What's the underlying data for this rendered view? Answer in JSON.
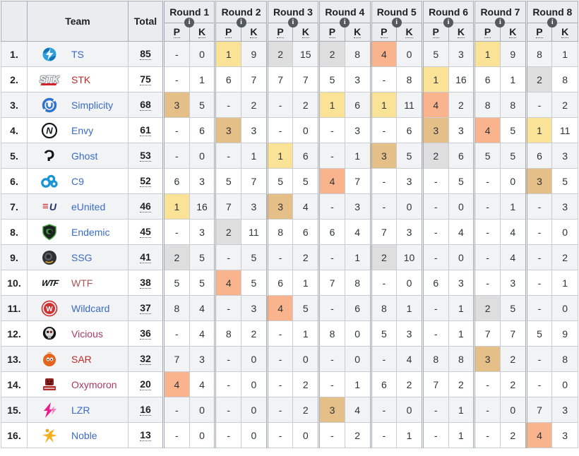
{
  "table": {
    "headers": {
      "team": "Team",
      "total": "Total",
      "p": "P",
      "k": "K",
      "info_icon": "i"
    },
    "rounds": [
      "Round 1",
      "Round 2",
      "Round 3",
      "Round 4",
      "Round 5",
      "Round 6",
      "Round 7",
      "Round 8"
    ],
    "placement_colors": {
      "1": "#FAE296",
      "2": "#DEDEDE",
      "3": "#E4BF87",
      "4": "#F9B48E"
    },
    "link_colors": {
      "blue": "#3A6BC5",
      "red": "#B92C2C",
      "red_muted": "#A55858",
      "red_violet": "#A73A62"
    },
    "teams": [
      {
        "rank": "1.",
        "name": "TS",
        "logo": "ts-logo",
        "name_color": "blue",
        "total": "85",
        "rounds": [
          {
            "p": "-",
            "k": "0"
          },
          {
            "p": "1",
            "k": "9"
          },
          {
            "p": "2",
            "k": "15"
          },
          {
            "p": "2",
            "k": "8"
          },
          {
            "p": "4",
            "k": "0"
          },
          {
            "p": "5",
            "k": "3"
          },
          {
            "p": "1",
            "k": "9"
          },
          {
            "p": "8",
            "k": "1"
          }
        ]
      },
      {
        "rank": "2.",
        "name": "STK",
        "logo": "stk-logo",
        "name_color": "red",
        "total": "75",
        "rounds": [
          {
            "p": "-",
            "k": "1"
          },
          {
            "p": "6",
            "k": "7"
          },
          {
            "p": "7",
            "k": "7"
          },
          {
            "p": "5",
            "k": "3"
          },
          {
            "p": "-",
            "k": "8"
          },
          {
            "p": "1",
            "k": "16"
          },
          {
            "p": "6",
            "k": "1"
          },
          {
            "p": "2",
            "k": "8"
          }
        ]
      },
      {
        "rank": "3.",
        "name": "Simplicity",
        "logo": "simplicity-logo",
        "name_color": "blue",
        "total": "68",
        "rounds": [
          {
            "p": "3",
            "k": "5"
          },
          {
            "p": "-",
            "k": "2"
          },
          {
            "p": "-",
            "k": "2"
          },
          {
            "p": "1",
            "k": "6"
          },
          {
            "p": "1",
            "k": "11"
          },
          {
            "p": "4",
            "k": "2"
          },
          {
            "p": "8",
            "k": "8"
          },
          {
            "p": "-",
            "k": "2"
          }
        ]
      },
      {
        "rank": "4.",
        "name": "Envy",
        "logo": "envy-logo",
        "name_color": "blue",
        "total": "61",
        "rounds": [
          {
            "p": "-",
            "k": "6"
          },
          {
            "p": "3",
            "k": "3"
          },
          {
            "p": "-",
            "k": "0"
          },
          {
            "p": "-",
            "k": "3"
          },
          {
            "p": "-",
            "k": "6"
          },
          {
            "p": "3",
            "k": "3"
          },
          {
            "p": "4",
            "k": "5"
          },
          {
            "p": "1",
            "k": "11"
          }
        ]
      },
      {
        "rank": "5.",
        "name": "Ghost",
        "logo": "ghost-logo",
        "name_color": "blue",
        "total": "53",
        "rounds": [
          {
            "p": "-",
            "k": "0"
          },
          {
            "p": "-",
            "k": "1"
          },
          {
            "p": "1",
            "k": "6"
          },
          {
            "p": "-",
            "k": "1"
          },
          {
            "p": "3",
            "k": "5"
          },
          {
            "p": "2",
            "k": "6"
          },
          {
            "p": "5",
            "k": "5"
          },
          {
            "p": "6",
            "k": "3"
          }
        ]
      },
      {
        "rank": "6.",
        "name": "C9",
        "logo": "c9-logo",
        "name_color": "blue",
        "total": "52",
        "rounds": [
          {
            "p": "6",
            "k": "3"
          },
          {
            "p": "5",
            "k": "7"
          },
          {
            "p": "5",
            "k": "5"
          },
          {
            "p": "4",
            "k": "7"
          },
          {
            "p": "-",
            "k": "3"
          },
          {
            "p": "-",
            "k": "5"
          },
          {
            "p": "-",
            "k": "0"
          },
          {
            "p": "3",
            "k": "5"
          }
        ]
      },
      {
        "rank": "7.",
        "name": "eUnited",
        "logo": "eunited-logo",
        "name_color": "blue",
        "total": "46",
        "rounds": [
          {
            "p": "1",
            "k": "16"
          },
          {
            "p": "7",
            "k": "3"
          },
          {
            "p": "3",
            "k": "4"
          },
          {
            "p": "-",
            "k": "3"
          },
          {
            "p": "-",
            "k": "0"
          },
          {
            "p": "-",
            "k": "0"
          },
          {
            "p": "-",
            "k": "1"
          },
          {
            "p": "-",
            "k": "3"
          }
        ]
      },
      {
        "rank": "8.",
        "name": "Endemic",
        "logo": "endemic-logo",
        "name_color": "blue",
        "total": "45",
        "rounds": [
          {
            "p": "-",
            "k": "3"
          },
          {
            "p": "2",
            "k": "11"
          },
          {
            "p": "8",
            "k": "6"
          },
          {
            "p": "6",
            "k": "4"
          },
          {
            "p": "7",
            "k": "3"
          },
          {
            "p": "-",
            "k": "4"
          },
          {
            "p": "-",
            "k": "4"
          },
          {
            "p": "-",
            "k": "0"
          }
        ]
      },
      {
        "rank": "9.",
        "name": "SSG",
        "logo": "ssg-logo",
        "name_color": "blue",
        "total": "41",
        "rounds": [
          {
            "p": "2",
            "k": "5"
          },
          {
            "p": "-",
            "k": "5"
          },
          {
            "p": "-",
            "k": "2"
          },
          {
            "p": "-",
            "k": "1"
          },
          {
            "p": "2",
            "k": "10"
          },
          {
            "p": "-",
            "k": "0"
          },
          {
            "p": "-",
            "k": "4"
          },
          {
            "p": "-",
            "k": "2"
          }
        ]
      },
      {
        "rank": "10.",
        "name": "WTF",
        "logo": "wtf-logo",
        "name_color": "red_muted",
        "total": "38",
        "rounds": [
          {
            "p": "5",
            "k": "5"
          },
          {
            "p": "4",
            "k": "5"
          },
          {
            "p": "6",
            "k": "1"
          },
          {
            "p": "7",
            "k": "8"
          },
          {
            "p": "-",
            "k": "0"
          },
          {
            "p": "6",
            "k": "3"
          },
          {
            "p": "-",
            "k": "3"
          },
          {
            "p": "-",
            "k": "1"
          }
        ]
      },
      {
        "rank": "11.",
        "name": "Wildcard",
        "logo": "wildcard-logo",
        "name_color": "blue",
        "total": "37",
        "rounds": [
          {
            "p": "8",
            "k": "4"
          },
          {
            "p": "-",
            "k": "3"
          },
          {
            "p": "4",
            "k": "5"
          },
          {
            "p": "-",
            "k": "6"
          },
          {
            "p": "8",
            "k": "1"
          },
          {
            "p": "-",
            "k": "1"
          },
          {
            "p": "2",
            "k": "5"
          },
          {
            "p": "-",
            "k": "0"
          }
        ]
      },
      {
        "rank": "12.",
        "name": "Vicious",
        "logo": "vicious-logo",
        "name_color": "red_violet",
        "total": "36",
        "rounds": [
          {
            "p": "-",
            "k": "4"
          },
          {
            "p": "8",
            "k": "2"
          },
          {
            "p": "-",
            "k": "1"
          },
          {
            "p": "8",
            "k": "0"
          },
          {
            "p": "5",
            "k": "3"
          },
          {
            "p": "-",
            "k": "1"
          },
          {
            "p": "7",
            "k": "7"
          },
          {
            "p": "5",
            "k": "9"
          }
        ]
      },
      {
        "rank": "13.",
        "name": "SAR",
        "logo": "sar-logo",
        "name_color": "red",
        "total": "32",
        "rounds": [
          {
            "p": "7",
            "k": "3"
          },
          {
            "p": "-",
            "k": "0"
          },
          {
            "p": "-",
            "k": "0"
          },
          {
            "p": "-",
            "k": "0"
          },
          {
            "p": "-",
            "k": "4"
          },
          {
            "p": "8",
            "k": "8"
          },
          {
            "p": "3",
            "k": "2"
          },
          {
            "p": "-",
            "k": "8"
          }
        ]
      },
      {
        "rank": "14.",
        "name": "Oxymoron",
        "logo": "oxymoron-logo",
        "name_color": "red_violet",
        "total": "20",
        "rounds": [
          {
            "p": "4",
            "k": "4"
          },
          {
            "p": "-",
            "k": "0"
          },
          {
            "p": "-",
            "k": "2"
          },
          {
            "p": "-",
            "k": "1"
          },
          {
            "p": "6",
            "k": "2"
          },
          {
            "p": "7",
            "k": "2"
          },
          {
            "p": "-",
            "k": "2"
          },
          {
            "p": "-",
            "k": "0"
          }
        ]
      },
      {
        "rank": "15.",
        "name": "LZR",
        "logo": "lzr-logo",
        "name_color": "blue",
        "total": "16",
        "rounds": [
          {
            "p": "-",
            "k": "0"
          },
          {
            "p": "-",
            "k": "0"
          },
          {
            "p": "-",
            "k": "2"
          },
          {
            "p": "3",
            "k": "4"
          },
          {
            "p": "-",
            "k": "0"
          },
          {
            "p": "-",
            "k": "1"
          },
          {
            "p": "-",
            "k": "0"
          },
          {
            "p": "7",
            "k": "3"
          }
        ]
      },
      {
        "rank": "16.",
        "name": "Noble",
        "logo": "noble-logo",
        "name_color": "blue",
        "total": "13",
        "rounds": [
          {
            "p": "-",
            "k": "0"
          },
          {
            "p": "-",
            "k": "0"
          },
          {
            "p": "-",
            "k": "0"
          },
          {
            "p": "-",
            "k": "2"
          },
          {
            "p": "-",
            "k": "1"
          },
          {
            "p": "-",
            "k": "1"
          },
          {
            "p": "-",
            "k": "2"
          },
          {
            "p": "4",
            "k": "3"
          }
        ]
      }
    ]
  }
}
